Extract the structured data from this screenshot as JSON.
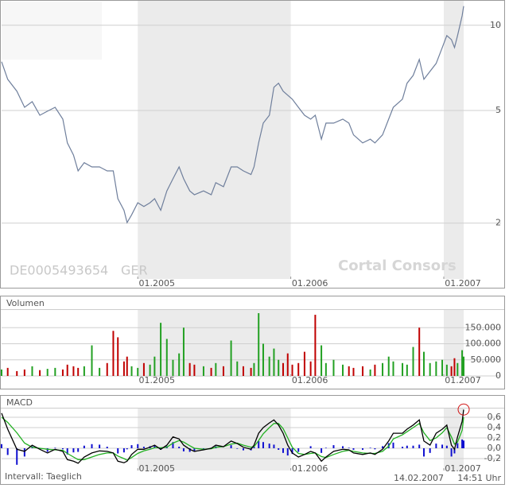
{
  "chart_data": [
    {
      "type": "line",
      "color": "#6f7f9c",
      "log_scale": true,
      "grid": true,
      "annotations": [
        "DE0005493654",
        "GER",
        "Cortal Consors"
      ],
      "x": [
        2004.11,
        2004.15,
        2004.21,
        2004.26,
        2004.31,
        2004.36,
        2004.41,
        2004.46,
        2004.51,
        2004.54,
        2004.58,
        2004.61,
        2004.65,
        2004.7,
        2004.75,
        2004.8,
        2004.84,
        2004.87,
        2004.91,
        2004.93,
        2004.96,
        2005.0,
        2005.04,
        2005.08,
        2005.11,
        2005.15,
        2005.19,
        2005.23,
        2005.27,
        2005.3,
        2005.34,
        2005.37,
        2005.43,
        2005.48,
        2005.51,
        2005.56,
        2005.61,
        2005.65,
        2005.69,
        2005.74,
        2005.76,
        2005.79,
        2005.82,
        2005.86,
        2005.89,
        2005.92,
        2005.95,
        2005.98,
        2006.01,
        2006.05,
        2006.09,
        2006.13,
        2006.16,
        2006.2,
        2006.23,
        2006.28,
        2006.34,
        2006.38,
        2006.41,
        2006.47,
        2006.52,
        2006.55,
        2006.6,
        2006.64,
        2006.67,
        2006.73,
        2006.76,
        2006.8,
        2006.84,
        2006.87,
        2006.91,
        2006.95,
        2006.99,
        2007.02,
        2007.05,
        2007.07,
        2007.09,
        2007.12,
        2007.13
      ],
      "values": [
        7.43,
        6.44,
        5.85,
        5.13,
        5.37,
        4.81,
        4.97,
        5.13,
        4.66,
        3.84,
        3.48,
        3.06,
        3.27,
        3.16,
        3.16,
        3.06,
        3.06,
        2.44,
        2.22,
        2.01,
        2.14,
        2.36,
        2.29,
        2.36,
        2.44,
        2.22,
        2.6,
        2.87,
        3.16,
        2.87,
        2.6,
        2.52,
        2.6,
        2.52,
        2.78,
        2.69,
        3.16,
        3.16,
        3.06,
        2.97,
        3.16,
        3.84,
        4.51,
        4.81,
        6.04,
        6.24,
        5.85,
        5.66,
        5.48,
        5.13,
        4.81,
        4.66,
        4.81,
        3.96,
        4.51,
        4.51,
        4.66,
        4.51,
        4.1,
        3.84,
        3.96,
        3.84,
        4.1,
        4.66,
        5.13,
        5.48,
        6.24,
        6.65,
        7.57,
        6.44,
        6.87,
        7.33,
        8.34,
        9.19,
        8.9,
        8.34,
        9.19,
        10.81,
        11.68
      ],
      "xlim": [
        2004.11,
        2007.13
      ],
      "xticks": [
        {
          "value": 2005,
          "label": "01.2005"
        },
        {
          "value": 2006,
          "label": "01.2006"
        },
        {
          "value": 2007,
          "label": "01.2007"
        }
      ],
      "ylim": [
        1.27,
        12.2
      ],
      "yticks": [
        2,
        5,
        10
      ]
    },
    {
      "type": "bar",
      "title": "Volumen",
      "grid": true,
      "x": [
        2004.11,
        2004.15,
        2004.21,
        2004.26,
        2004.31,
        2004.36,
        2004.41,
        2004.46,
        2004.51,
        2004.54,
        2004.58,
        2004.61,
        2004.65,
        2004.7,
        2004.75,
        2004.8,
        2004.84,
        2004.87,
        2004.91,
        2004.93,
        2004.96,
        2005.0,
        2005.04,
        2005.08,
        2005.11,
        2005.15,
        2005.19,
        2005.23,
        2005.27,
        2005.3,
        2005.34,
        2005.37,
        2005.43,
        2005.48,
        2005.51,
        2005.56,
        2005.61,
        2005.65,
        2005.69,
        2005.74,
        2005.76,
        2005.79,
        2005.82,
        2005.86,
        2005.89,
        2005.92,
        2005.95,
        2005.98,
        2006.01,
        2006.05,
        2006.09,
        2006.13,
        2006.16,
        2006.2,
        2006.23,
        2006.28,
        2006.34,
        2006.38,
        2006.41,
        2006.47,
        2006.52,
        2006.55,
        2006.6,
        2006.64,
        2006.67,
        2006.73,
        2006.76,
        2006.8,
        2006.84,
        2006.87,
        2006.91,
        2006.95,
        2006.99,
        2007.02,
        2007.05,
        2007.07,
        2007.09,
        2007.12,
        2007.13
      ],
      "values": [
        20000,
        25000,
        15000,
        20000,
        30000,
        18000,
        22000,
        25000,
        20000,
        35000,
        30000,
        25000,
        30000,
        95000,
        25000,
        40000,
        140000,
        120000,
        45000,
        60000,
        30000,
        25000,
        40000,
        35000,
        60000,
        165000,
        115000,
        50000,
        70000,
        150000,
        40000,
        35000,
        30000,
        25000,
        40000,
        30000,
        110000,
        45000,
        30000,
        25000,
        40000,
        195000,
        100000,
        60000,
        85000,
        50000,
        40000,
        70000,
        35000,
        40000,
        75000,
        45000,
        190000,
        95000,
        40000,
        50000,
        35000,
        30000,
        25000,
        30000,
        20000,
        35000,
        40000,
        60000,
        45000,
        40000,
        35000,
        90000,
        150000,
        75000,
        40000,
        45000,
        50000,
        35000,
        30000,
        55000,
        40000,
        80000,
        60000
      ],
      "colors": [
        "#22a022",
        "#c00000",
        "#c00000",
        "#c00000",
        "#22a022",
        "#c00000",
        "#22a022",
        "#22a022",
        "#c00000",
        "#c00000",
        "#c00000",
        "#c00000",
        "#22a022",
        "#22a022",
        "#22a022",
        "#c00000",
        "#c00000",
        "#c00000",
        "#c00000",
        "#c00000",
        "#22a022",
        "#22a022",
        "#c00000",
        "#22a022",
        "#22a022",
        "#22a022",
        "#22a022",
        "#22a022",
        "#22a022",
        "#22a022",
        "#c00000",
        "#c00000",
        "#22a022",
        "#c00000",
        "#22a022",
        "#c00000",
        "#22a022",
        "#22a022",
        "#c00000",
        "#c00000",
        "#22a022",
        "#22a022",
        "#22a022",
        "#22a022",
        "#22a022",
        "#22a022",
        "#c00000",
        "#c00000",
        "#c00000",
        "#c00000",
        "#c00000",
        "#c00000",
        "#c00000",
        "#22a022",
        "#22a022",
        "#22a022",
        "#22a022",
        "#c00000",
        "#c00000",
        "#c00000",
        "#22a022",
        "#c00000",
        "#22a022",
        "#22a022",
        "#22a022",
        "#22a022",
        "#22a022",
        "#22a022",
        "#c00000",
        "#22a022",
        "#22a022",
        "#22a022",
        "#22a022",
        "#22a022",
        "#c00000",
        "#c00000",
        "#22a022",
        "#22a022",
        "#22a022"
      ],
      "xlim": [
        2004.11,
        2007.13
      ],
      "xticks": [
        {
          "value": 2005,
          "label": "01.2005"
        },
        {
          "value": 2006,
          "label": "01.2006"
        },
        {
          "value": 2007,
          "label": "01.2007"
        }
      ],
      "ylim": [
        0,
        200000
      ],
      "yticks": [
        {
          "value": 150000,
          "label": "150.000"
        },
        {
          "value": 100000,
          "label": "100.000"
        },
        {
          "value": 50000,
          "label": "50.000"
        },
        0
      ]
    },
    {
      "type": "line",
      "title": "MACD",
      "grid": true,
      "x": [
        2004.11,
        2004.15,
        2004.21,
        2004.26,
        2004.31,
        2004.36,
        2004.41,
        2004.46,
        2004.51,
        2004.54,
        2004.58,
        2004.61,
        2004.65,
        2004.7,
        2004.75,
        2004.8,
        2004.84,
        2004.87,
        2004.91,
        2004.93,
        2004.96,
        2005.0,
        2005.04,
        2005.08,
        2005.11,
        2005.15,
        2005.19,
        2005.23,
        2005.27,
        2005.3,
        2005.34,
        2005.37,
        2005.43,
        2005.48,
        2005.51,
        2005.56,
        2005.61,
        2005.65,
        2005.69,
        2005.74,
        2005.76,
        2005.79,
        2005.82,
        2005.86,
        2005.89,
        2005.92,
        2005.95,
        2005.98,
        2006.01,
        2006.05,
        2006.09,
        2006.13,
        2006.16,
        2006.2,
        2006.23,
        2006.28,
        2006.34,
        2006.38,
        2006.41,
        2006.47,
        2006.52,
        2006.55,
        2006.6,
        2006.64,
        2006.67,
        2006.73,
        2006.76,
        2006.8,
        2006.84,
        2006.87,
        2006.91,
        2006.95,
        2006.99,
        2007.02,
        2007.05,
        2007.07,
        2007.09,
        2007.12,
        2007.13
      ],
      "series": [
        {
          "type": "bar",
          "color": "#1010d0",
          "values": [
            0.08,
            -0.13,
            -0.32,
            -0.16,
            0.04,
            -0.02,
            -0.07,
            0.01,
            -0.02,
            -0.12,
            -0.08,
            -0.07,
            0.05,
            0.08,
            0.07,
            0.03,
            0,
            -0.1,
            -0.08,
            -0.02,
            0.06,
            0.08,
            0.03,
            0.04,
            0.05,
            -0.03,
            0.04,
            0.12,
            0.03,
            -0.06,
            -0.07,
            -0.06,
            -0.01,
            0.01,
            0.04,
            0,
            0.06,
            -0.01,
            -0.04,
            -0.04,
            0.03,
            0.14,
            0.12,
            0.09,
            0.07,
            -0.03,
            -0.09,
            -0.14,
            -0.11,
            -0.07,
            0,
            0.04,
            0,
            -0.09,
            0.01,
            0.06,
            0.04,
            0.01,
            -0.03,
            -0.03,
            0.01,
            -0.02,
            0.04,
            0.1,
            0.11,
            0.03,
            0.05,
            0.05,
            0.07,
            -0.16,
            -0.09,
            0.09,
            0.07,
            0.05,
            -0.16,
            -0.1,
            0.1,
            0.17,
            0.15
          ]
        },
        {
          "type": "line",
          "color": "#22b022",
          "values": [
            0.6,
            0.5,
            0.3,
            0.1,
            0.02,
            0,
            -0.02,
            -0.03,
            -0.04,
            -0.1,
            -0.17,
            -0.22,
            -0.22,
            -0.17,
            -0.12,
            -0.09,
            -0.09,
            -0.15,
            -0.2,
            -0.23,
            -0.18,
            -0.1,
            -0.05,
            -0.02,
            0.01,
            0.01,
            0.02,
            0.1,
            0.15,
            0.12,
            0.05,
            0,
            -0.02,
            -0.01,
            0.02,
            0.03,
            0.08,
            0.1,
            0.06,
            0.02,
            0.03,
            0.15,
            0.28,
            0.4,
            0.48,
            0.48,
            0.38,
            0.2,
            0.02,
            -0.1,
            -0.12,
            -0.1,
            -0.09,
            -0.16,
            -0.18,
            -0.12,
            -0.06,
            -0.04,
            -0.06,
            -0.09,
            -0.1,
            -0.1,
            -0.06,
            0.04,
            0.18,
            0.26,
            0.32,
            0.4,
            0.48,
            0.3,
            0.15,
            0.2,
            0.3,
            0.4,
            0.22,
            0.08,
            0.12,
            0.35,
            0.6
          ]
        },
        {
          "type": "line",
          "color": "#000000",
          "values": [
            0.68,
            0.37,
            -0.02,
            -0.06,
            0.06,
            -0.02,
            -0.09,
            -0.02,
            -0.06,
            -0.22,
            -0.25,
            -0.29,
            -0.17,
            -0.09,
            -0.05,
            -0.06,
            -0.09,
            -0.25,
            -0.28,
            -0.25,
            -0.12,
            -0.02,
            -0.02,
            0.02,
            0.06,
            -0.02,
            0.06,
            0.22,
            0.18,
            0.06,
            -0.02,
            -0.06,
            -0.03,
            0,
            0.06,
            0.03,
            0.14,
            0.09,
            0.02,
            -0.02,
            0.06,
            0.29,
            0.4,
            0.49,
            0.55,
            0.45,
            0.29,
            0.06,
            -0.09,
            -0.17,
            -0.12,
            -0.06,
            -0.09,
            -0.25,
            -0.17,
            -0.06,
            -0.02,
            -0.03,
            -0.09,
            -0.12,
            -0.09,
            -0.12,
            -0.02,
            0.14,
            0.29,
            0.29,
            0.37,
            0.45,
            0.55,
            0.14,
            0.06,
            0.29,
            0.37,
            0.45,
            0.06,
            -0.02,
            0.22,
            0.52,
            0.75
          ]
        }
      ],
      "xlim": [
        2004.11,
        2007.13
      ],
      "xticks": [
        {
          "value": 2005,
          "label": "01.2005"
        },
        {
          "value": 2006,
          "label": "01.2006"
        },
        {
          "value": 2007,
          "label": "01.2007"
        }
      ],
      "ylim": [
        -0.4,
        0.8
      ],
      "yticks": [
        {
          "value": 0.6,
          "label": "0,6"
        },
        {
          "value": 0.4,
          "label": "0,4"
        },
        {
          "value": 0.2,
          "label": "0,2"
        },
        {
          "value": 0,
          "label": "0,0"
        },
        {
          "value": -0.2,
          "label": "-0,2"
        }
      ]
    }
  ],
  "footer": {
    "interval": "Intervall: Taeglich",
    "date": "14.02.2007",
    "time": "14:51 Uhr"
  }
}
